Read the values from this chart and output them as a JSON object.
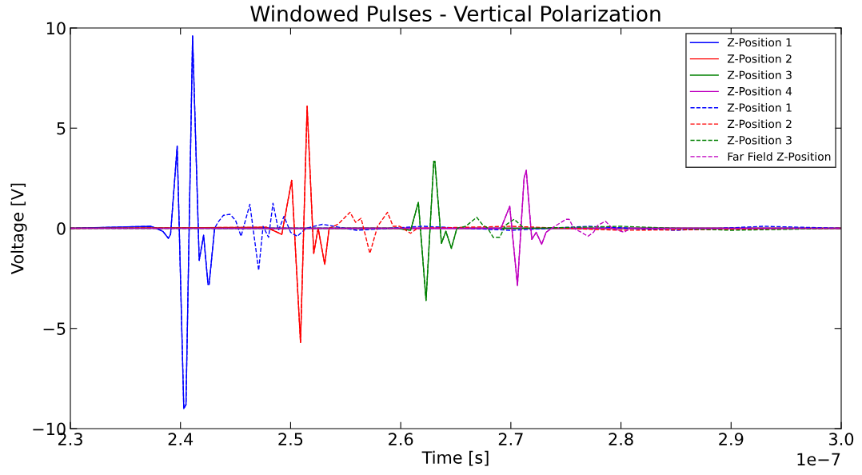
{
  "chart_data": {
    "type": "line",
    "title": "Windowed Pulses - Vertical Polarization",
    "xlabel": "Time [s]",
    "ylabel": "Voltage [V]",
    "xlim": [
      2.3,
      3.0
    ],
    "ylim": [
      -10,
      10
    ],
    "xticks": [
      2.3,
      2.4,
      2.5,
      2.6,
      2.7,
      2.8,
      2.9,
      {
        "value": 3,
        "label": "3.0"
      }
    ],
    "yticks": [
      {
        "value": -10,
        "label": "−10"
      },
      {
        "value": -5,
        "label": "−5"
      },
      0,
      5,
      10
    ],
    "annotations": [
      "1e−7"
    ],
    "grid": false,
    "legend": "top right",
    "marker": "none",
    "series": [
      {
        "name": "Z-Position 1",
        "color": "#0000ff",
        "line_style": "solid",
        "x": [
          2.3,
          2.373,
          2.378,
          2.384,
          2.389,
          2.391,
          2.397,
          2.403,
          2.405,
          2.411,
          2.417,
          2.421,
          2.425,
          2.426,
          2.431,
          3.0
        ],
        "values": [
          0,
          0.1,
          0,
          -0.15,
          -0.5,
          -0.3,
          4.1,
          -9.0,
          -8.8,
          9.6,
          -1.6,
          -0.35,
          -2.8,
          -2.8,
          0,
          0
        ]
      },
      {
        "name": "Z-Position 2",
        "color": "#ff0000",
        "line_style": "solid",
        "x": [
          2.3,
          2.478,
          2.492,
          2.501,
          2.509,
          2.515,
          2.521,
          2.525,
          2.531,
          2.535,
          3.0
        ],
        "values": [
          0,
          0.05,
          -0.3,
          2.4,
          -5.7,
          6.1,
          -1.25,
          0,
          -1.8,
          0,
          0
        ]
      },
      {
        "name": "Z-Position 3",
        "color": "#008000",
        "line_style": "solid",
        "x": [
          2.3,
          2.597,
          2.609,
          2.616,
          2.623,
          2.63,
          2.631,
          2.637,
          2.641,
          2.646,
          2.651,
          3.0
        ],
        "values": [
          0,
          0,
          -0.1,
          1.3,
          -3.6,
          3.35,
          3.35,
          -0.75,
          -0.15,
          -1.0,
          0,
          0
        ]
      },
      {
        "name": "Z-Position 4",
        "color": "#bf00bf",
        "line_style": "solid",
        "x": [
          2.3,
          2.691,
          2.699,
          2.706,
          2.712,
          2.714,
          2.719,
          2.723,
          2.728,
          2.732,
          2.737,
          3.0
        ],
        "values": [
          0,
          0,
          1.1,
          -2.85,
          2.5,
          2.9,
          -0.55,
          -0.2,
          -0.8,
          -0.2,
          0,
          0
        ]
      },
      {
        "name": "Z-Position 1",
        "color": "#0000ff",
        "line_style": "dashed",
        "x": [
          2.3,
          2.373,
          2.378,
          2.384,
          2.389,
          2.391,
          2.397,
          2.403,
          2.405,
          2.411,
          2.417,
          2.421,
          2.425,
          2.426,
          2.431,
          2.434,
          2.439,
          2.445,
          2.45,
          2.455,
          2.463,
          2.471,
          2.475,
          2.48,
          2.484,
          2.489,
          2.494,
          2.5,
          2.506,
          2.514,
          2.529,
          2.56,
          2.62,
          2.7,
          2.77,
          2.85,
          2.93,
          3.0
        ],
        "values": [
          0,
          0.1,
          0,
          -0.15,
          -0.5,
          -0.3,
          4.1,
          -9.0,
          -8.8,
          9.6,
          -1.6,
          -0.35,
          -2.8,
          -2.8,
          0,
          0.3,
          0.65,
          0.7,
          0.4,
          -0.4,
          1.2,
          -2.1,
          0.1,
          -0.45,
          1.25,
          -0.1,
          0.6,
          -0.2,
          -0.4,
          0,
          0.2,
          -0.1,
          0.1,
          -0.1,
          0.1,
          -0.1,
          0.1,
          0
        ]
      },
      {
        "name": "Z-Position 2",
        "color": "#ff0000",
        "line_style": "dashed",
        "x": [
          2.3,
          2.478,
          2.492,
          2.501,
          2.509,
          2.515,
          2.521,
          2.525,
          2.531,
          2.535,
          2.543,
          2.554,
          2.559,
          2.564,
          2.572,
          2.579,
          2.588,
          2.593,
          2.599,
          2.609,
          2.615,
          2.7,
          2.8,
          3.0
        ],
        "values": [
          0,
          0.05,
          -0.3,
          2.4,
          -5.7,
          6.1,
          -1.25,
          0,
          -1.8,
          0,
          0.2,
          0.8,
          0.3,
          0.5,
          -1.25,
          0.1,
          0.8,
          0.1,
          0.1,
          -0.25,
          0,
          0.1,
          -0.1,
          0
        ]
      },
      {
        "name": "Z-Position 3",
        "color": "#008000",
        "line_style": "dashed",
        "x": [
          2.3,
          2.597,
          2.609,
          2.616,
          2.623,
          2.63,
          2.631,
          2.637,
          2.641,
          2.646,
          2.651,
          2.659,
          2.669,
          2.674,
          2.679,
          2.684,
          2.69,
          2.695,
          2.703,
          2.712,
          2.8,
          2.9,
          3.0
        ],
        "values": [
          0,
          0,
          -0.1,
          1.3,
          -3.6,
          3.35,
          3.35,
          -0.75,
          -0.15,
          -1.0,
          0,
          0.1,
          0.55,
          0.2,
          0,
          -0.45,
          -0.45,
          0.15,
          0.45,
          0,
          0.1,
          -0.1,
          0
        ]
      },
      {
        "name": "Far Field Z-Position",
        "color": "#bf00bf",
        "line_style": "dashed",
        "x": [
          2.3,
          2.691,
          2.699,
          2.706,
          2.712,
          2.714,
          2.719,
          2.723,
          2.728,
          2.732,
          2.737,
          2.75,
          2.753,
          2.757,
          2.764,
          2.77,
          2.775,
          2.779,
          2.786,
          2.792,
          2.803,
          2.808,
          3.0
        ],
        "values": [
          0,
          0,
          1.1,
          -2.85,
          2.5,
          2.9,
          -0.55,
          -0.2,
          -0.8,
          -0.2,
          0,
          0.45,
          0.45,
          0,
          -0.2,
          -0.4,
          -0.2,
          0.15,
          0.35,
          0,
          -0.2,
          0,
          0
        ]
      }
    ]
  }
}
